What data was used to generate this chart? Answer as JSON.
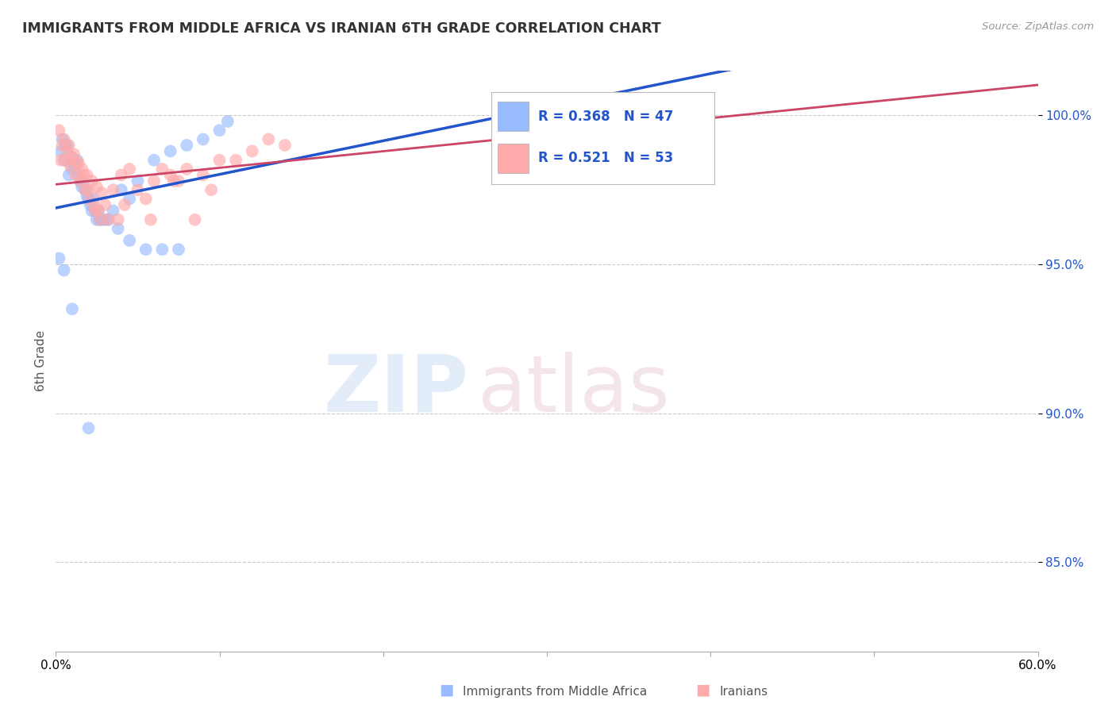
{
  "title": "IMMIGRANTS FROM MIDDLE AFRICA VS IRANIAN 6TH GRADE CORRELATION CHART",
  "source": "Source: ZipAtlas.com",
  "ylabel": "6th Grade",
  "xlim": [
    0.0,
    60.0
  ],
  "ylim": [
    82.0,
    101.5
  ],
  "yticks": [
    85.0,
    90.0,
    95.0,
    100.0
  ],
  "ytick_labels": [
    "85.0%",
    "90.0%",
    "95.0%",
    "100.0%"
  ],
  "blue_color": "#99bbff",
  "pink_color": "#ffaaaa",
  "blue_line_color": "#2255cc",
  "pink_line_color": "#cc4466",
  "legend_R1": "0.368",
  "legend_N1": "47",
  "legend_R2": "0.521",
  "legend_N2": "53",
  "blue_scatter_x": [
    0.5,
    0.8,
    1.0,
    1.2,
    1.5,
    1.8,
    2.0,
    2.2,
    2.5,
    2.8,
    3.0,
    3.5,
    4.0,
    4.5,
    5.0,
    6.0,
    7.0,
    8.0,
    9.0,
    10.0,
    0.3,
    0.6,
    0.9,
    1.1,
    1.4,
    1.6,
    1.9,
    2.1,
    2.4,
    2.7,
    0.4,
    0.7,
    1.3,
    1.7,
    2.3,
    2.6,
    3.2,
    3.8,
    4.5,
    5.5,
    6.5,
    7.5,
    10.5,
    0.2,
    0.5,
    1.0,
    2.0
  ],
  "blue_scatter_y": [
    98.5,
    98.0,
    98.2,
    98.3,
    97.8,
    97.5,
    97.2,
    96.8,
    96.5,
    96.5,
    96.5,
    96.8,
    97.5,
    97.2,
    97.8,
    98.5,
    98.8,
    99.0,
    99.2,
    99.5,
    98.8,
    99.0,
    98.6,
    98.4,
    98.0,
    97.6,
    97.3,
    97.0,
    96.8,
    96.5,
    99.2,
    99.0,
    98.5,
    97.8,
    97.2,
    96.8,
    96.5,
    96.2,
    95.8,
    95.5,
    95.5,
    95.5,
    99.8,
    95.2,
    94.8,
    93.5,
    89.5
  ],
  "pink_scatter_x": [
    0.3,
    0.6,
    0.9,
    1.2,
    1.5,
    1.8,
    2.1,
    2.4,
    2.7,
    3.0,
    3.5,
    4.0,
    4.5,
    5.0,
    6.0,
    7.0,
    8.0,
    10.0,
    12.0,
    14.0,
    0.4,
    0.7,
    1.0,
    1.3,
    1.6,
    1.9,
    2.2,
    2.5,
    2.8,
    0.5,
    0.8,
    1.1,
    1.4,
    1.7,
    2.0,
    2.3,
    2.6,
    3.2,
    3.8,
    5.5,
    7.5,
    9.0,
    11.0,
    33.0,
    35.0,
    0.2,
    4.2,
    6.5,
    8.5,
    13.0,
    9.5,
    7.2,
    5.8
  ],
  "pink_scatter_y": [
    98.5,
    98.5,
    98.3,
    98.0,
    97.8,
    97.5,
    97.2,
    96.8,
    96.5,
    97.0,
    97.5,
    98.0,
    98.2,
    97.5,
    97.8,
    98.0,
    98.2,
    98.5,
    98.8,
    99.0,
    99.0,
    98.8,
    98.6,
    98.4,
    98.2,
    98.0,
    97.8,
    97.6,
    97.4,
    99.2,
    99.0,
    98.7,
    98.4,
    98.0,
    97.5,
    97.0,
    96.8,
    96.5,
    96.5,
    97.2,
    97.8,
    98.0,
    98.5,
    100.2,
    100.0,
    99.5,
    97.0,
    98.2,
    96.5,
    99.2,
    97.5,
    97.8,
    96.5
  ]
}
